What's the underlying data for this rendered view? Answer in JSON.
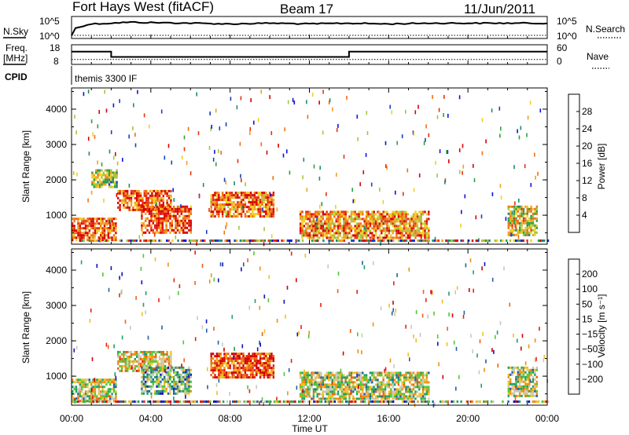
{
  "header": {
    "station": "Fort Hays West (fitACF)",
    "beam": "Beam 17",
    "date": "11/Jun/2011"
  },
  "top_panels": {
    "nsky_label": "N.Sky",
    "nsky_ticks": [
      "10^5",
      "10^0"
    ],
    "nsearch_label": "N.Search",
    "nsearch_ticks": [
      "10^5",
      "10^0"
    ],
    "freq_label": "Freq.",
    "freq_unit": "[MHz]",
    "freq_ticks": [
      "18",
      "8"
    ],
    "nave_label": "Nave",
    "nave_ticks": [
      "60",
      "0"
    ],
    "cpid_label": "CPID",
    "cpid_value": "themis 3300 IF"
  },
  "colors": {
    "power_scale": [
      "#1010e0",
      "#1840c0",
      "#208a70",
      "#30a040",
      "#a0c840",
      "#f0d020",
      "#f0a020",
      "#f07010",
      "#e83010",
      "#d80000"
    ],
    "velocity_scale": [
      "#1010c0",
      "#2060a0",
      "#20a060",
      "#50c830",
      "#c8c8c0",
      "#f0c020",
      "#f09010",
      "#f06010",
      "#e82010",
      "#d00000"
    ]
  },
  "chart_data": [
    {
      "type": "line",
      "name": "noise-and-frequency",
      "xlabel": "",
      "x_range_hours": [
        0,
        24
      ],
      "series": [
        {
          "name": "N.Sky",
          "x": [
            0,
            0.5,
            1,
            2,
            3,
            4,
            6,
            8,
            10,
            12,
            14,
            16,
            18,
            20,
            22,
            24
          ],
          "values": [
            5,
            500,
            2000,
            3000,
            5000,
            4000,
            3000,
            2000,
            3000,
            2000,
            3000,
            2000,
            3000,
            3000,
            3000,
            3000
          ]
        },
        {
          "name": "Freq.",
          "x": [
            0,
            2,
            2,
            14,
            14,
            24
          ],
          "values": [
            14.5,
            14.5,
            11.8,
            11.8,
            14.5,
            14.5
          ]
        },
        {
          "name": "Nave",
          "x": [
            0,
            24
          ],
          "values": [
            15,
            15
          ]
        }
      ]
    },
    {
      "type": "heatmap",
      "name": "power",
      "xlabel": "Time UT",
      "ylabel": "Slant Range [km]",
      "x_ticks": [
        "00:00",
        "04:00",
        "08:00",
        "12:00",
        "16:00",
        "20:00",
        "00:00"
      ],
      "y_ticks": [
        "1000",
        "2000",
        "3000",
        "4000"
      ],
      "ylim": [
        180,
        4600
      ],
      "colorbar": {
        "label": "Power [dB]",
        "ticks": [
          "4",
          "8",
          "12",
          "16",
          "20",
          "24",
          "28"
        ],
        "range": [
          0,
          30
        ]
      },
      "features": [
        {
          "t0": 0.0,
          "t1": 2.2,
          "r0": 250,
          "r1": 900,
          "level": 0.8
        },
        {
          "t0": 1.0,
          "t1": 2.3,
          "r0": 1800,
          "r1": 2300,
          "level": 0.45
        },
        {
          "t0": 2.3,
          "t1": 5.0,
          "r0": 1150,
          "r1": 1700,
          "level": 0.8
        },
        {
          "t0": 3.5,
          "t1": 6.0,
          "r0": 500,
          "r1": 1250,
          "level": 0.85
        },
        {
          "t0": 7.0,
          "t1": 10.2,
          "r0": 950,
          "r1": 1650,
          "level": 0.75
        },
        {
          "t0": 11.5,
          "t1": 18.0,
          "r0": 300,
          "r1": 1100,
          "level": 0.7
        },
        {
          "t0": 22.0,
          "t1": 23.5,
          "r0": 400,
          "r1": 1250,
          "level": 0.55
        }
      ]
    },
    {
      "type": "heatmap",
      "name": "velocity",
      "xlabel": "Time UT",
      "ylabel": "Slant Range [km]",
      "x_ticks": [
        "00:00",
        "04:00",
        "08:00",
        "12:00",
        "16:00",
        "20:00",
        "00:00"
      ],
      "y_ticks": [
        "1000",
        "2000",
        "3000",
        "4000"
      ],
      "ylim": [
        180,
        4600
      ],
      "colorbar": {
        "label": "Velocity [m s⁻¹]",
        "ticks": [
          "200",
          "100",
          "50",
          "15",
          "−15",
          "−50",
          "−100",
          "−200"
        ],
        "range": [
          200,
          -200
        ]
      },
      "features": [
        {
          "t0": 0.0,
          "t1": 2.2,
          "r0": 250,
          "r1": 900,
          "level": 0.45
        },
        {
          "t0": 2.3,
          "t1": 5.0,
          "r0": 1150,
          "r1": 1700,
          "level": 0.55
        },
        {
          "t0": 3.5,
          "t1": 6.0,
          "r0": 500,
          "r1": 1250,
          "level": 0.35
        },
        {
          "t0": 7.0,
          "t1": 10.2,
          "r0": 950,
          "r1": 1650,
          "level": 0.8
        },
        {
          "t0": 11.5,
          "t1": 18.0,
          "r0": 300,
          "r1": 1100,
          "level": 0.45
        },
        {
          "t0": 22.0,
          "t1": 23.5,
          "r0": 400,
          "r1": 1250,
          "level": 0.45
        }
      ]
    }
  ]
}
